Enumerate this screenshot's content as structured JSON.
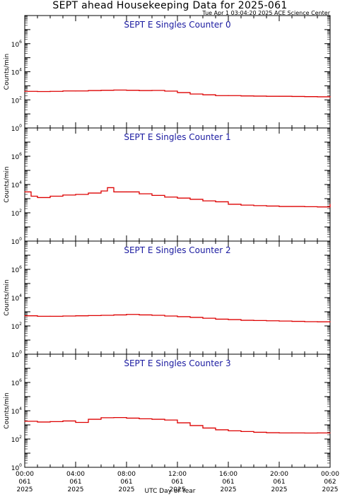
{
  "header": {
    "title": "SEPT ahead Housekeeping Data for 2025-061",
    "timestamp": "Tue Apr  1 03:04:20 2025 ACE Science Center"
  },
  "colors": {
    "series": "#dd0000",
    "panel_title": "#1a1aa0",
    "axes": "#000000"
  },
  "chart_data": [
    {
      "type": "line",
      "title": "SEPT E Singles Counter 0",
      "ylabel": "Counts/min",
      "yscale": "log",
      "ylim": [
        1,
        100000000
      ],
      "yticks": [
        "10^0",
        "10^2",
        "10^4",
        "10^6"
      ],
      "xlim": [
        0,
        24
      ],
      "x": [
        0,
        1,
        2,
        3,
        4,
        5,
        6,
        7,
        8,
        9,
        10,
        11,
        12,
        13,
        14,
        15,
        16,
        17,
        18,
        19,
        20,
        21,
        22,
        23,
        24
      ],
      "values": [
        400,
        390,
        400,
        430,
        430,
        460,
        480,
        500,
        480,
        460,
        470,
        420,
        330,
        260,
        230,
        200,
        200,
        190,
        185,
        180,
        180,
        175,
        170,
        165,
        160
      ]
    },
    {
      "type": "line",
      "title": "SEPT E Singles Counter 1",
      "ylabel": "Counts/min",
      "yscale": "log",
      "ylim": [
        1,
        100000000
      ],
      "yticks": [
        "10^0",
        "10^2",
        "10^4",
        "10^6"
      ],
      "xlim": [
        0,
        24
      ],
      "x": [
        0,
        0.5,
        1,
        2,
        3,
        4,
        5,
        6,
        6.5,
        7,
        8,
        9,
        10,
        11,
        12,
        13,
        14,
        15,
        16,
        17,
        18,
        19,
        20,
        21,
        22,
        23,
        24
      ],
      "values": [
        3000,
        1500,
        1200,
        1500,
        1800,
        2000,
        2500,
        3500,
        6000,
        3000,
        3000,
        2200,
        1700,
        1300,
        1100,
        900,
        700,
        600,
        400,
        350,
        320,
        300,
        280,
        280,
        270,
        260,
        400
      ]
    },
    {
      "type": "line",
      "title": "SEPT E Singles Counter 2",
      "ylabel": "Counts/min",
      "yscale": "log",
      "ylim": [
        1,
        100000000
      ],
      "yticks": [
        "10^0",
        "10^2",
        "10^4",
        "10^6"
      ],
      "xlim": [
        0,
        24
      ],
      "x": [
        0,
        1,
        2,
        3,
        4,
        5,
        6,
        7,
        8,
        9,
        10,
        11,
        12,
        13,
        14,
        15,
        16,
        17,
        18,
        19,
        20,
        21,
        22,
        23,
        24
      ],
      "values": [
        520,
        480,
        480,
        500,
        520,
        540,
        560,
        600,
        650,
        600,
        560,
        500,
        450,
        400,
        350,
        300,
        280,
        250,
        240,
        230,
        220,
        210,
        200,
        195,
        190
      ]
    },
    {
      "type": "line",
      "title": "SEPT E Singles Counter 3",
      "ylabel": "Counts/min",
      "yscale": "log",
      "ylim": [
        1,
        100000000
      ],
      "yticks": [
        "10^0",
        "10^2",
        "10^4",
        "10^6"
      ],
      "xlim": [
        0,
        24
      ],
      "x": [
        0,
        1,
        2,
        3,
        4,
        5,
        6,
        7,
        8,
        9,
        10,
        11,
        12,
        13,
        14,
        15,
        16,
        17,
        18,
        19,
        20,
        21,
        22,
        23,
        24
      ],
      "values": [
        1800,
        1600,
        1700,
        1900,
        1500,
        2500,
        3200,
        3300,
        3000,
        2700,
        2500,
        2200,
        1400,
        900,
        600,
        450,
        380,
        340,
        300,
        280,
        270,
        270,
        265,
        270,
        270
      ]
    }
  ],
  "x_axis": {
    "label": "UTC Day of Year",
    "ticks": [
      {
        "time": "00:00",
        "doy": "061",
        "year": "2025"
      },
      {
        "time": "04:00",
        "doy": "061",
        "year": "2025"
      },
      {
        "time": "08:00",
        "doy": "061",
        "year": "2025"
      },
      {
        "time": "12:00",
        "doy": "061",
        "year": "2025"
      },
      {
        "time": "16:00",
        "doy": "061",
        "year": "2025"
      },
      {
        "time": "20:00",
        "doy": "061",
        "year": "2025"
      },
      {
        "time": "00:00",
        "doy": "062",
        "year": "2025"
      }
    ]
  }
}
